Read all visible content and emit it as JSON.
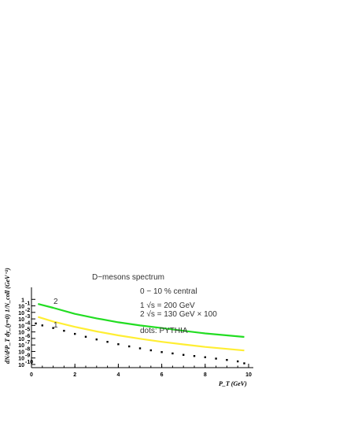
{
  "chart_data": {
    "type": "line",
    "title": "D−mesons spectrum",
    "xlabel": "P_T (GeV)",
    "ylabel": "dN/d²P_T dy_(y=0)  1/N_coll  (GeV⁻²)",
    "xlim": [
      0,
      10
    ],
    "ylim": [
      1e-10,
      10
    ],
    "yscale": "log",
    "x_ticks": [
      "0",
      "2",
      "4",
      "6",
      "8",
      "10"
    ],
    "y_ticks": [
      "1",
      "10",
      "10",
      "10",
      "10",
      "10",
      "10",
      "10",
      "10",
      "10",
      "10"
    ],
    "y_tick_exponents": [
      "",
      "-1",
      "-2",
      "-3",
      "-4",
      "-5",
      "-6",
      "-7",
      "-8",
      "-9",
      "-10"
    ],
    "annotations": {
      "centrality": "0 − 10 % central",
      "line1": "1   √s = 200 GeV",
      "line2": "2   √s = 130 GeV  × 100",
      "dots": "dots: PYTHIA"
    },
    "series": [
      {
        "label": "2",
        "color": "#22dd22",
        "x": [
          0.3,
          1,
          2,
          3,
          4,
          5,
          6,
          7,
          8,
          9,
          9.8
        ],
        "y": [
          0.2,
          0.05,
          0.006,
          0.0012,
          0.0003,
          0.0001,
          4e-05,
          1.5e-05,
          6e-06,
          3e-06,
          1.7e-06
        ]
      },
      {
        "label": "1",
        "color": "#ffee33",
        "x": [
          0.3,
          1,
          2,
          3,
          4,
          5,
          6,
          7,
          8,
          9,
          9.8
        ],
        "y": [
          0.002,
          0.0004,
          6e-05,
          1.2e-05,
          3e-06,
          9e-07,
          3e-07,
          1.2e-07,
          5e-08,
          2.5e-08,
          1.4e-08
        ]
      },
      {
        "label": "dots",
        "color": "#000000",
        "x": [
          0.2,
          0.5,
          1,
          1.5,
          2,
          2.5,
          3,
          3.5,
          4,
          4.5,
          5,
          5.5,
          6,
          6.5,
          7,
          7.5,
          8,
          8.5,
          9,
          9.5,
          9.8
        ],
        "y": [
          0.0002,
          0.0001,
          4e-05,
          1.5e-05,
          5e-06,
          1.8e-06,
          7e-07,
          3e-07,
          1.3e-07,
          6e-08,
          3e-08,
          1.5e-08,
          8e-09,
          5e-09,
          3e-09,
          2e-09,
          1.3e-09,
          8e-10,
          5e-10,
          3e-10,
          1.5e-10
        ]
      }
    ]
  }
}
